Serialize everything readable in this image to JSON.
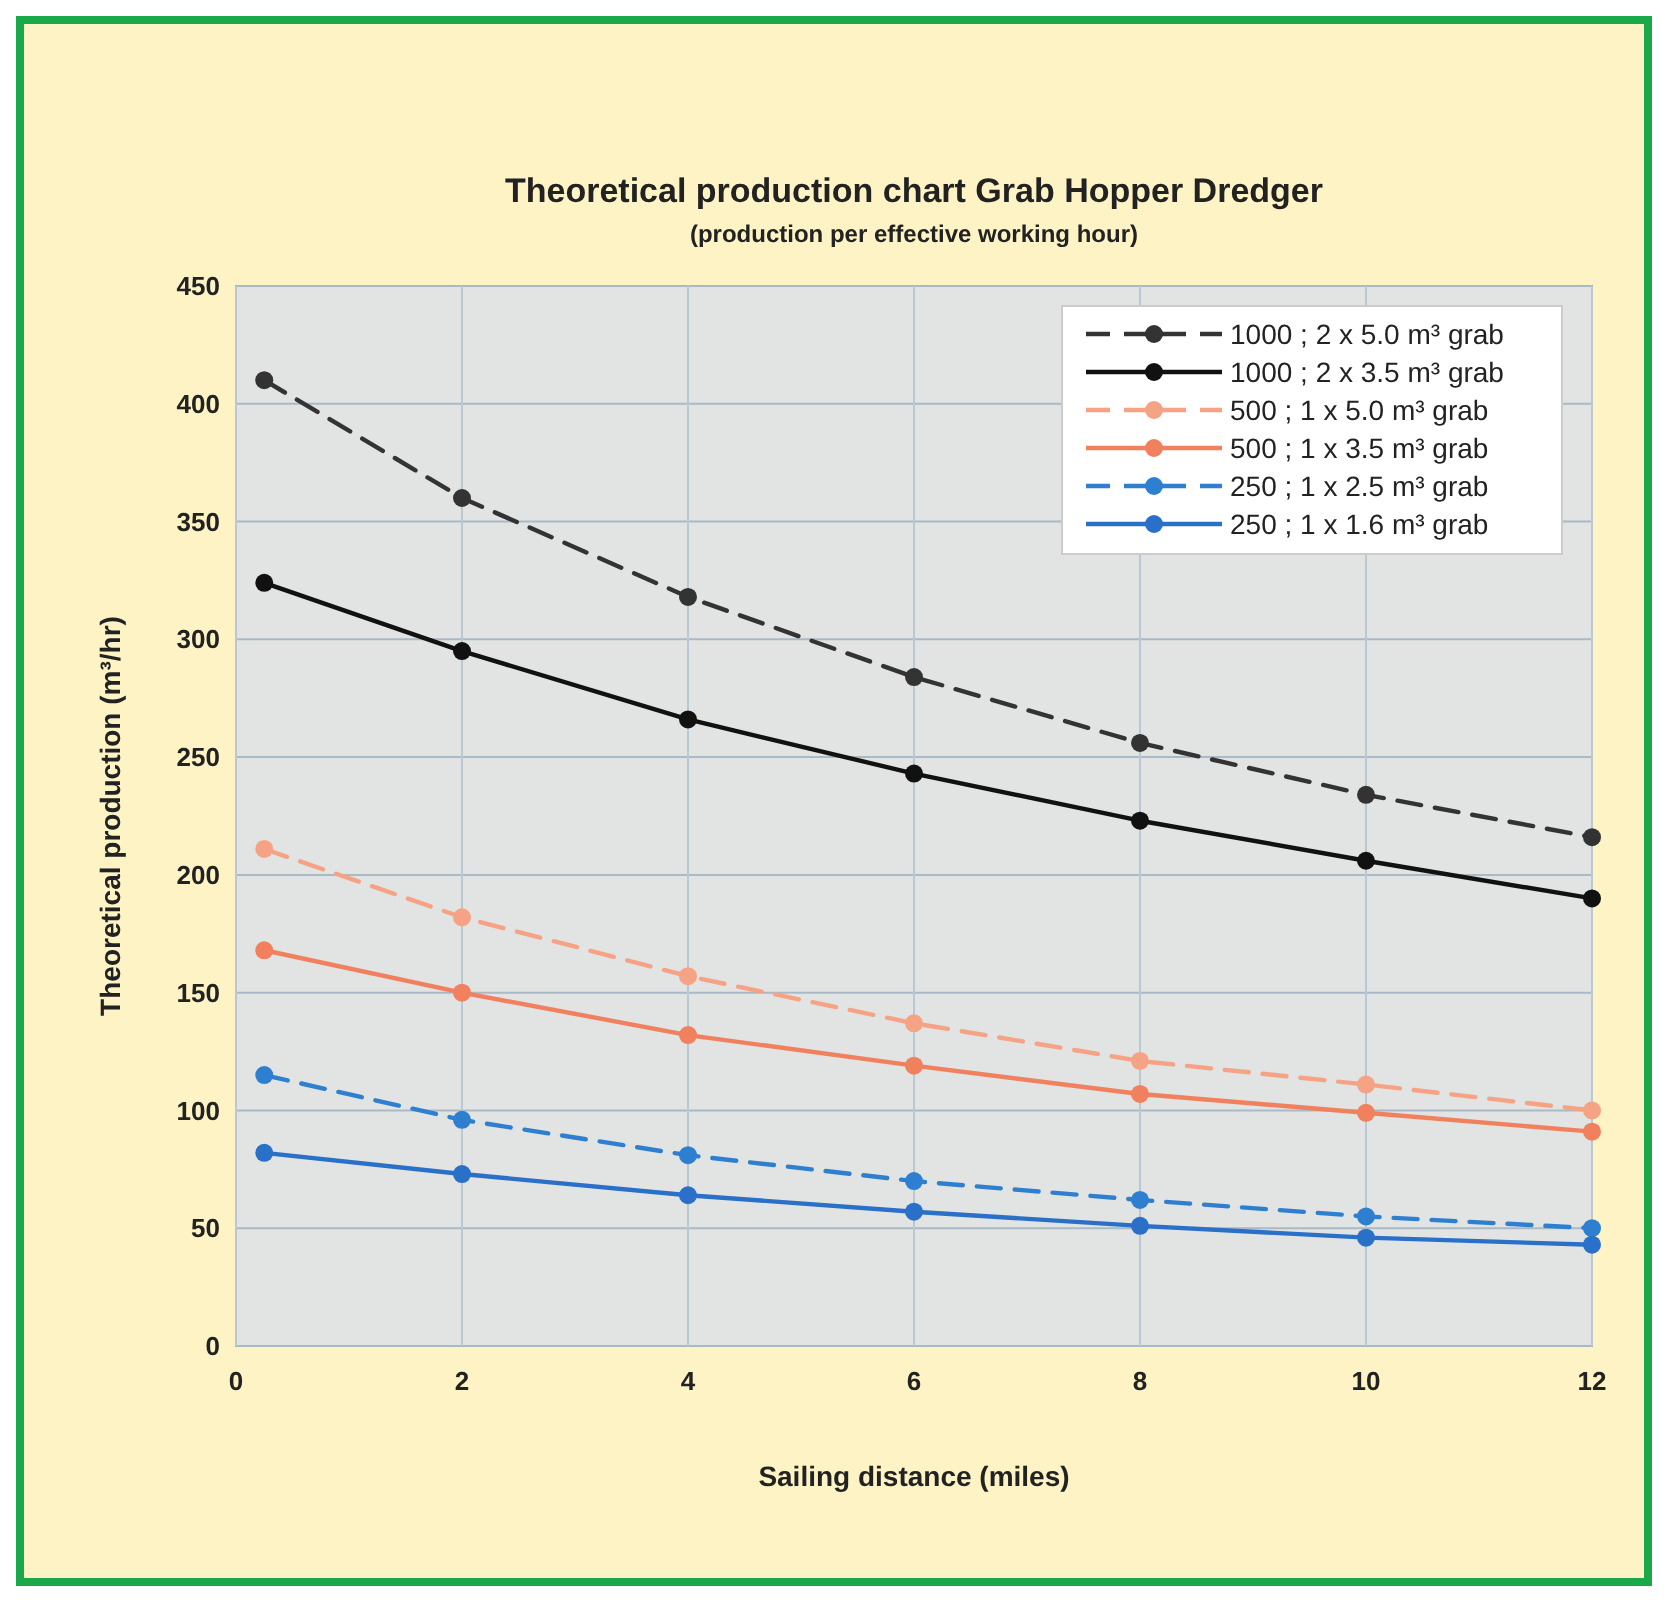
{
  "chart_data": {
    "type": "line",
    "title": "Theoretical production chart Grab Hopper Dredger",
    "subtitle": "(production per effective working hour)",
    "xlabel": "Sailing distance (miles)",
    "ylabel": "Theoretical production (m³/hr)",
    "x": [
      0.25,
      2,
      4,
      6,
      8,
      10,
      12
    ],
    "xlim": [
      0,
      12
    ],
    "xticks": [
      0,
      2,
      4,
      6,
      8,
      10,
      12
    ],
    "ylim": [
      0,
      450
    ],
    "yticks": [
      0,
      50,
      100,
      150,
      200,
      250,
      300,
      350,
      400,
      450
    ],
    "grid": true,
    "legend": "top right",
    "marker": "circle",
    "series": [
      {
        "name": "1000 ; 2 x 5.0 m³ grab",
        "color": "#333333",
        "line_style": "dashed",
        "values": [
          410,
          360,
          318,
          284,
          256,
          234,
          216
        ]
      },
      {
        "name": "1000 ; 2 x 3.5 m³ grab",
        "color": "#111111",
        "line_style": "solid",
        "values": [
          324,
          295,
          266,
          243,
          223,
          206,
          190
        ]
      },
      {
        "name": "500 ; 1 x 5.0 m³ grab",
        "color": "#f5a384",
        "line_style": "dashed",
        "values": [
          211,
          182,
          157,
          137,
          121,
          111,
          100
        ]
      },
      {
        "name": "500 ; 1 x 3.5 m³ grab",
        "color": "#f0805e",
        "line_style": "solid",
        "values": [
          168,
          150,
          132,
          119,
          107,
          99,
          91
        ]
      },
      {
        "name": "250 ; 1 x 2.5 m³ grab",
        "color": "#2f7fd0",
        "line_style": "dashed",
        "values": [
          115,
          96,
          81,
          70,
          62,
          55,
          50
        ]
      },
      {
        "name": "250 ; 1 x 1.6 m³ grab",
        "color": "#2a6fc8",
        "line_style": "solid",
        "values": [
          82,
          73,
          64,
          57,
          51,
          46,
          43
        ]
      }
    ]
  }
}
